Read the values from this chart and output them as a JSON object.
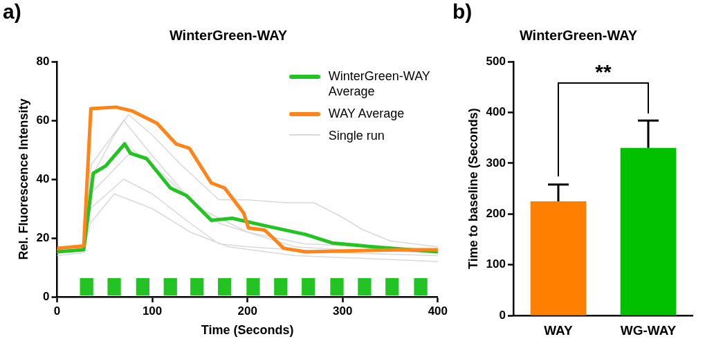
{
  "chart_data": [
    {
      "type": "line",
      "title": "WinterGreen-WAY",
      "xlabel": "Time (Seconds)",
      "ylabel": "Rel. Fluorescence Intensity",
      "annotations": [
        "a)"
      ],
      "xlim": [
        0,
        400
      ],
      "xticks": [
        0,
        100,
        200,
        300,
        400
      ],
      "ylim": [
        0,
        80
      ],
      "yticks": [
        0,
        20,
        40,
        60,
        80
      ],
      "legend": "top right",
      "marker": "none",
      "line_style": "solid",
      "series": [
        {
          "name": "Single run",
          "color": "#d9d9d9",
          "x": [
            0,
            28,
            35,
            60,
            75,
            100,
            130,
            170,
            200,
            240,
            270,
            300,
            320,
            350,
            400
          ],
          "values": [
            16,
            17,
            40,
            55,
            62,
            55,
            45,
            33,
            33,
            32,
            32,
            27,
            23,
            19,
            17
          ]
        },
        {
          "color": "#d9d9d9",
          "x": [
            0,
            28,
            36,
            70,
            100,
            140,
            170,
            200,
            250,
            300,
            400
          ],
          "values": [
            15,
            16,
            45,
            60,
            48,
            33,
            25,
            22,
            17,
            16,
            15
          ]
        },
        {
          "color": "#d9d9d9",
          "x": [
            0,
            28,
            35,
            70,
            100,
            140,
            170,
            200,
            300,
            400
          ],
          "values": [
            14,
            15,
            30,
            40,
            35,
            25,
            18,
            17,
            15,
            14
          ]
        },
        {
          "color": "#d9d9d9",
          "x": [
            0,
            28,
            35,
            60,
            100,
            140,
            180,
            250,
            400
          ],
          "values": [
            15,
            16,
            25,
            35,
            30,
            22,
            17,
            14,
            12
          ]
        },
        {
          "color": "#d9d9d9",
          "x": [
            0,
            28,
            35,
            80,
            110,
            150,
            200,
            260,
            400
          ],
          "values": [
            16,
            17,
            35,
            50,
            42,
            30,
            22,
            18,
            16
          ]
        },
        {
          "name": "WinterGreen-WAY Average",
          "color": "#22c322",
          "x": [
            0,
            28,
            38,
            51,
            71,
            77,
            94,
            119,
            136,
            162,
            184,
            218,
            261,
            289,
            332,
            400
          ],
          "values": [
            15.3,
            16,
            42,
            44.5,
            52,
            48.8,
            47,
            37,
            34.4,
            26,
            26.7,
            24.2,
            21.2,
            18.3,
            17,
            15.3
          ]
        },
        {
          "name": "WAY Average",
          "color": "#ff8419",
          "x": [
            0,
            28,
            35.5,
            62,
            79,
            105,
            125,
            139,
            162,
            176,
            196,
            201,
            218,
            227,
            238,
            261,
            303,
            360,
            400
          ],
          "values": [
            16.5,
            17.3,
            64,
            64.5,
            63.2,
            59,
            52,
            50.5,
            38.7,
            37,
            28.5,
            23.4,
            22.7,
            20,
            16.5,
            15.3,
            15.6,
            16,
            16
          ]
        }
      ],
      "bands": [
        {
          "axis": "x",
          "from": 24,
          "to": 38,
          "color": "#22c322"
        },
        {
          "axis": "x",
          "from": 53,
          "to": 67,
          "color": "#22c322"
        },
        {
          "axis": "x",
          "from": 83,
          "to": 97,
          "color": "#22c322"
        },
        {
          "axis": "x",
          "from": 112,
          "to": 126,
          "color": "#22c322"
        },
        {
          "axis": "x",
          "from": 140,
          "to": 154,
          "color": "#22c322"
        },
        {
          "axis": "x",
          "from": 169,
          "to": 183,
          "color": "#22c322"
        },
        {
          "axis": "x",
          "from": 199,
          "to": 213,
          "color": "#22c322"
        },
        {
          "axis": "x",
          "from": 228,
          "to": 242,
          "color": "#22c322"
        },
        {
          "axis": "x",
          "from": 257,
          "to": 271,
          "color": "#22c322"
        },
        {
          "axis": "x",
          "from": 287,
          "to": 301,
          "color": "#22c322"
        },
        {
          "axis": "x",
          "from": 316,
          "to": 330,
          "color": "#22c322"
        },
        {
          "axis": "x",
          "from": 345,
          "to": 359,
          "color": "#22c322"
        },
        {
          "axis": "x",
          "from": 375,
          "to": 389,
          "color": "#22c322"
        }
      ]
    },
    {
      "type": "bar",
      "title": "WinterGreen-WAY",
      "ylabel": "Time to baseline (Seconds)",
      "annotations": [
        "b)",
        "**"
      ],
      "categories": [
        "WAY",
        "WG-WAY"
      ],
      "values": [
        225,
        330
      ],
      "colors": [
        "#ff7f00",
        "#00c000"
      ],
      "errors": [
        [
          225,
          258
        ],
        [
          330,
          384
        ]
      ],
      "ylim": [
        0,
        500
      ],
      "yticks": [
        0,
        100,
        200,
        300,
        400,
        500
      ],
      "legend": false
    }
  ]
}
